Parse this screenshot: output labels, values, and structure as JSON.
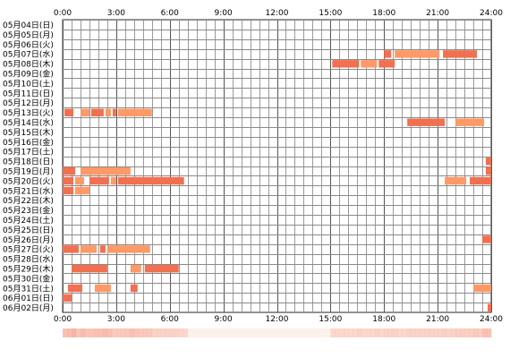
{
  "chart_data": {
    "type": "timeline",
    "x_ticks": [
      "0:00",
      "3:00",
      "6:00",
      "9:00",
      "12:00",
      "15:00",
      "18:00",
      "21:00",
      "24:00"
    ],
    "x_range_hours": [
      0,
      24
    ],
    "grid": true,
    "bar_color": "#f07050",
    "bar_color_alt": "#ff9966",
    "strip_color": "#f7b3a3",
    "rows": [
      {
        "label": "05月04日(日)",
        "segments": []
      },
      {
        "label": "05月05日(月)",
        "segments": []
      },
      {
        "label": "05月06日(火)",
        "segments": []
      },
      {
        "label": "05月07日(水)",
        "segments": [
          [
            18.0,
            18.4
          ],
          [
            18.6,
            21.1
          ],
          [
            21.3,
            23.2
          ]
        ]
      },
      {
        "label": "05月08日(木)",
        "segments": [
          [
            15.1,
            16.6
          ],
          [
            16.7,
            17.6
          ],
          [
            17.7,
            18.6
          ]
        ]
      },
      {
        "label": "05月09日(金)",
        "segments": []
      },
      {
        "label": "05月10日(土)",
        "segments": []
      },
      {
        "label": "05月11日(日)",
        "segments": []
      },
      {
        "label": "05月12日(月)",
        "segments": []
      },
      {
        "label": "05月13日(火)",
        "segments": [
          [
            0.1,
            0.6
          ],
          [
            1.0,
            1.5
          ],
          [
            1.6,
            2.3
          ],
          [
            2.4,
            2.7
          ],
          [
            2.8,
            3.0
          ],
          [
            3.1,
            5.0
          ]
        ]
      },
      {
        "label": "05月14日(水)",
        "segments": [
          [
            19.3,
            21.4
          ],
          [
            22.0,
            23.6
          ]
        ]
      },
      {
        "label": "05月15日(木)",
        "segments": []
      },
      {
        "label": "05月16日(金)",
        "segments": []
      },
      {
        "label": "05月17日(土)",
        "segments": []
      },
      {
        "label": "05月18日(日)",
        "segments": [
          [
            23.7,
            24.0
          ]
        ]
      },
      {
        "label": "05月19日(月)",
        "segments": [
          [
            0.0,
            0.7
          ],
          [
            1.0,
            3.8
          ],
          [
            23.7,
            24.0
          ]
        ]
      },
      {
        "label": "05月20日(火)",
        "segments": [
          [
            0.0,
            0.6
          ],
          [
            0.7,
            1.2
          ],
          [
            1.5,
            2.6
          ],
          [
            2.7,
            3.0
          ],
          [
            3.1,
            6.8
          ],
          [
            21.4,
            22.6
          ],
          [
            22.8,
            24.0
          ]
        ]
      },
      {
        "label": "05月21日(水)",
        "segments": [
          [
            0.0,
            0.6
          ],
          [
            0.7,
            1.5
          ]
        ]
      },
      {
        "label": "05月22日(木)",
        "segments": []
      },
      {
        "label": "05月23日(金)",
        "segments": []
      },
      {
        "label": "05月24日(土)",
        "segments": []
      },
      {
        "label": "05月25日(日)",
        "segments": []
      },
      {
        "label": "05月26日(月)",
        "segments": [
          [
            23.5,
            24.0
          ]
        ]
      },
      {
        "label": "05月27日(火)",
        "segments": [
          [
            0.0,
            0.9
          ],
          [
            1.0,
            1.9
          ],
          [
            2.1,
            2.4
          ],
          [
            2.5,
            4.9
          ]
        ]
      },
      {
        "label": "05月28日(水)",
        "segments": []
      },
      {
        "label": "05月29日(木)",
        "segments": [
          [
            0.5,
            2.5
          ],
          [
            3.8,
            4.4
          ],
          [
            4.6,
            6.5
          ]
        ]
      },
      {
        "label": "05月30日(金)",
        "segments": []
      },
      {
        "label": "05月31日(土)",
        "segments": [
          [
            0.3,
            1.1
          ],
          [
            1.8,
            2.7
          ],
          [
            3.8,
            4.2
          ],
          [
            23.0,
            24.0
          ]
        ]
      },
      {
        "label": "06月01日(日)",
        "segments": [
          [
            0.0,
            0.5
          ]
        ]
      },
      {
        "label": "06月02日(月)",
        "segments": [
          [
            23.8,
            24.0
          ]
        ]
      }
    ]
  }
}
